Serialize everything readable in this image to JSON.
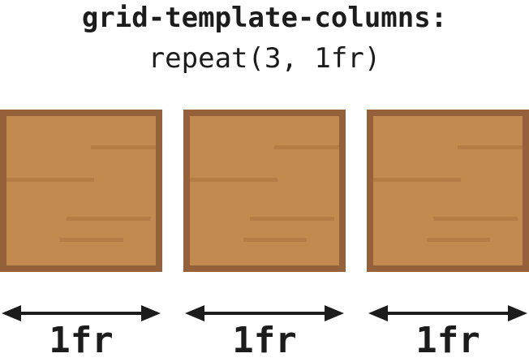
{
  "title": {
    "line1": "grid-template-columns:",
    "line2": "repeat(3, 1fr)"
  },
  "columns": [
    {
      "label": "1fr"
    },
    {
      "label": "1fr"
    },
    {
      "label": "1fr"
    }
  ],
  "colors": {
    "box_fill": "#c38a50",
    "box_border": "#95613a",
    "grain": "#b67c45",
    "arrow": "#1c1c1c",
    "text": "#1c1c1c"
  }
}
